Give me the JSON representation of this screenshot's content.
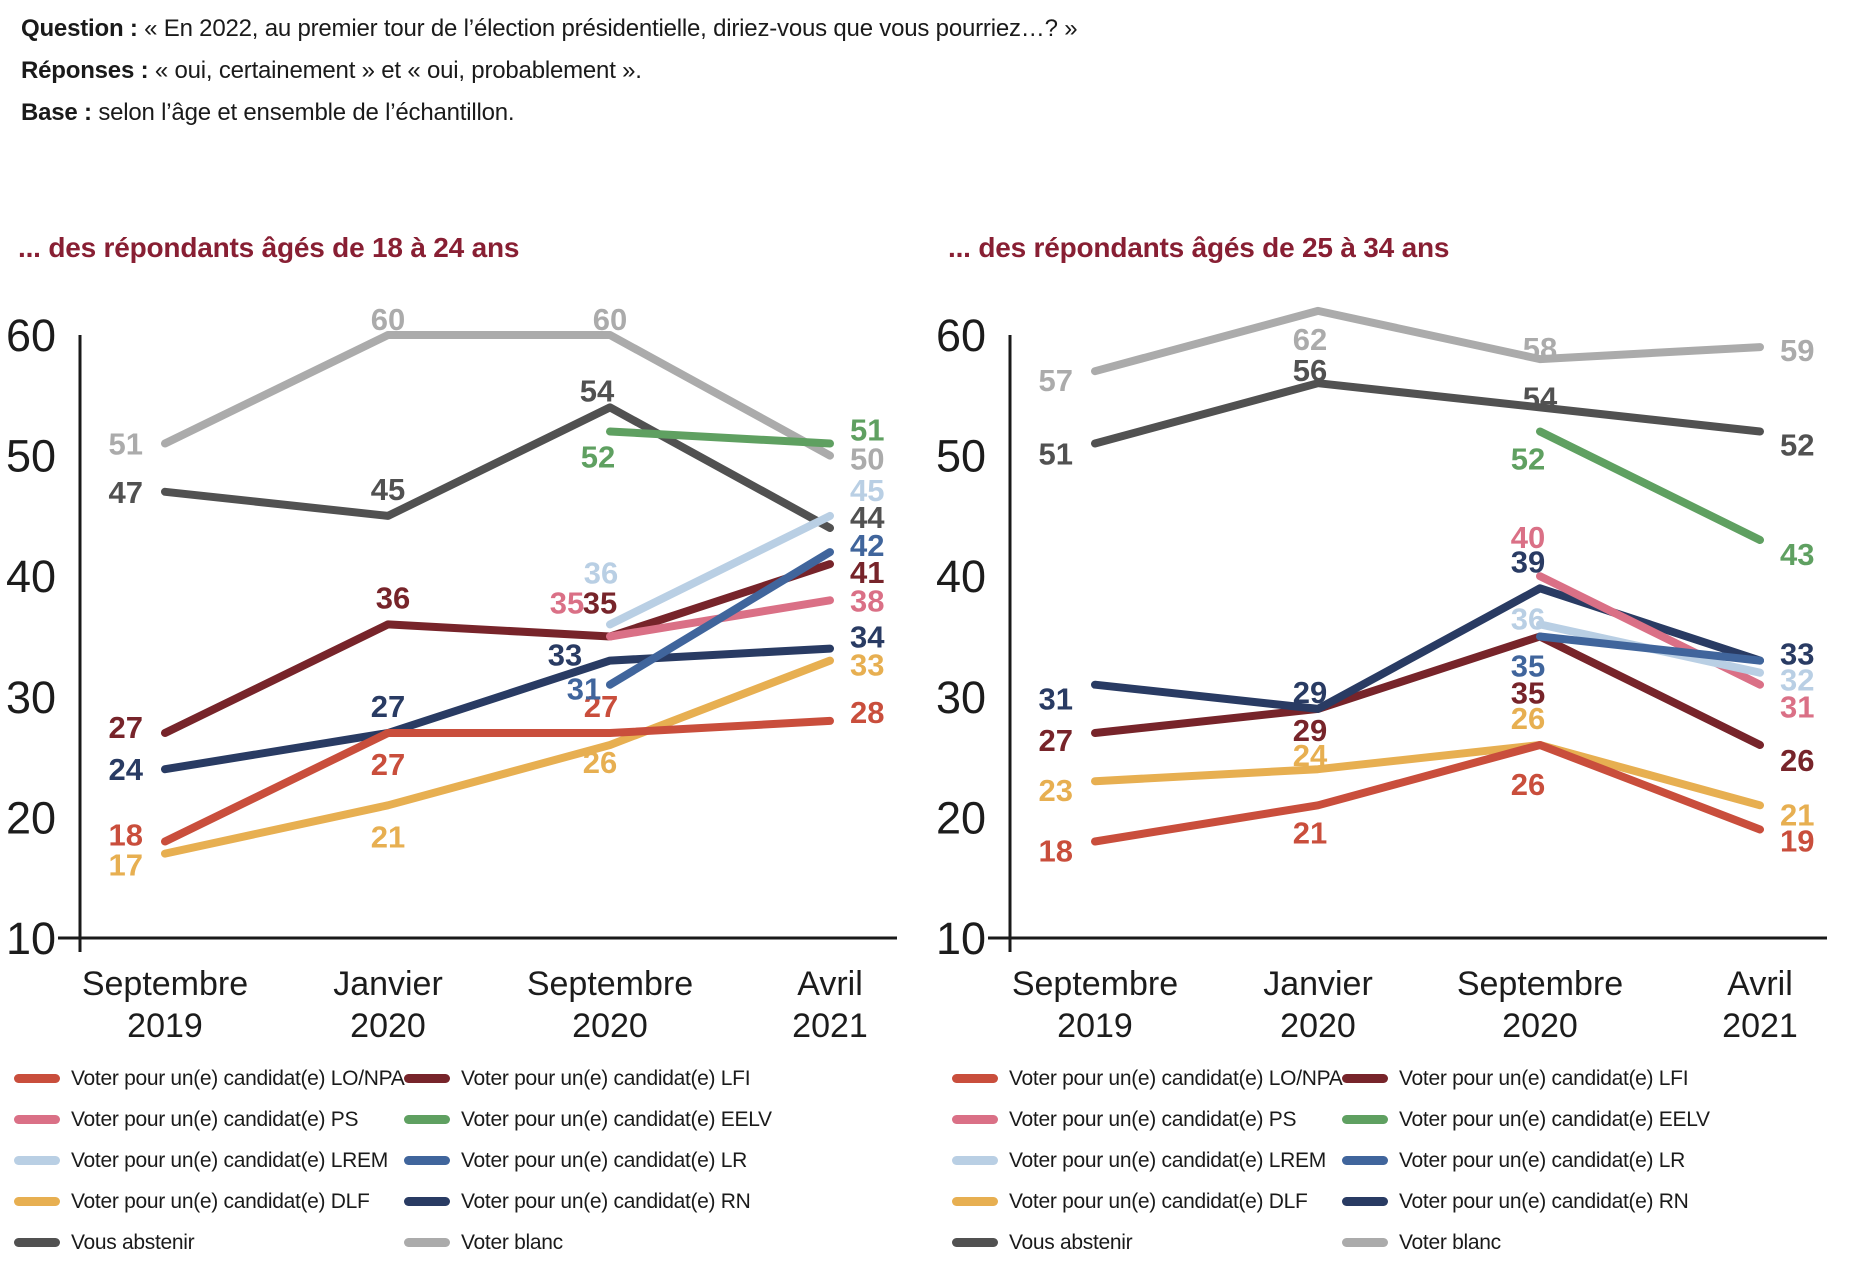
{
  "header": {
    "question_label": "Question :",
    "question_text": "« En 2022, au premier tour de l’élection présidentielle, diriez-vous que vous pourriez…? »",
    "responses_label": "Réponses :",
    "responses_text": "« oui, certainement » et « oui, probablement ».",
    "base_label": "Base :",
    "base_text": "selon l’âge et ensemble de l’échantillon."
  },
  "colors": {
    "lonpa": "#c94e3c",
    "lfi": "#77242a",
    "ps": "#da7086",
    "eelv": "#5fa061",
    "lrem": "#b9cfe4",
    "lr": "#40659c",
    "dlf": "#e7af51",
    "rn": "#293b63",
    "abstenir": "#515151",
    "blanc": "#ababab",
    "title": "#881f33",
    "text": "#1a1a1a"
  },
  "chart_data": [
    {
      "type": "line",
      "title": "... des répondants âgés de 18 à 24 ans",
      "x_labels": [
        [
          "Septembre",
          "2019"
        ],
        [
          "Janvier",
          "2020"
        ],
        [
          "Septembre",
          "2020"
        ],
        [
          "Avril",
          "2021"
        ]
      ],
      "ylim": [
        10,
        60
      ],
      "yticks": [
        60,
        50,
        40,
        30,
        20,
        10
      ],
      "legend_position": "bottom",
      "grid": false,
      "series": [
        {
          "key": "blanc",
          "name": "Voter blanc",
          "values": [
            51,
            60,
            60,
            50
          ],
          "label_pos": [
            "left",
            "above",
            "above",
            "right"
          ],
          "label_dx": [
            0,
            0,
            0,
            0
          ],
          "label_dy": [
            0,
            11,
            11,
            3
          ]
        },
        {
          "key": "abstenir",
          "name": "Vous abstenir",
          "values": [
            47,
            45,
            54,
            44
          ],
          "label_pos": [
            "left",
            "above",
            "above",
            "right"
          ],
          "label_dx": [
            0,
            0,
            -13,
            0
          ],
          "label_dy": [
            0,
            0,
            10,
            -11
          ]
        },
        {
          "key": "eelv",
          "name": "Voter pour un(e) candidat(e) EELV",
          "values": [
            null,
            null,
            52,
            51
          ],
          "label_pos": [
            null,
            null,
            "below",
            "right"
          ],
          "label_dx": [
            0,
            0,
            -12,
            0
          ],
          "label_dy": [
            0,
            0,
            -6,
            -14
          ]
        },
        {
          "key": "lfi",
          "name": "Voter pour un(e) candidat(e) LFI",
          "values": [
            27,
            36,
            35,
            41
          ],
          "label_pos": [
            "left",
            "above",
            "above",
            "right"
          ],
          "label_dx": [
            0,
            5,
            -10,
            0
          ],
          "label_dy": [
            -6,
            0,
            -7,
            8
          ]
        },
        {
          "key": "rn",
          "name": "Voter pour un(e) candidat(e) RN",
          "values": [
            24,
            27,
            33,
            34
          ],
          "label_pos": [
            "left",
            "above",
            "above",
            "right"
          ],
          "label_dx": [
            0,
            0,
            -45,
            0
          ],
          "label_dy": [
            0,
            0,
            21,
            -12
          ]
        },
        {
          "key": "dlf",
          "name": "Voter pour un(e) candidat(e) DLF",
          "values": [
            17,
            21,
            26,
            33
          ],
          "label_pos": [
            "left",
            "below",
            "below",
            "right"
          ],
          "label_dx": [
            0,
            0,
            -10,
            0
          ],
          "label_dy": [
            11,
            0,
            -14,
            4
          ]
        },
        {
          "key": "lonpa",
          "name": "Voter pour un(e) candidat(e) LO/NPA",
          "values": [
            18,
            27,
            27,
            28
          ],
          "label_pos": [
            "left",
            "below",
            "above",
            "right"
          ],
          "label_dx": [
            0,
            0,
            -9,
            0
          ],
          "label_dy": [
            -7,
            0,
            0,
            -9
          ]
        },
        {
          "key": "ps",
          "name": "Voter pour un(e) candidat(e) PS",
          "values": [
            null,
            null,
            35,
            38
          ],
          "label_pos": [
            null,
            null,
            "above",
            "right"
          ],
          "label_dx": [
            0,
            0,
            -43,
            0
          ],
          "label_dy": [
            0,
            0,
            -7,
            0
          ]
        },
        {
          "key": "lrem",
          "name": "Voter pour un(e) candidat(e) LREM",
          "values": [
            null,
            null,
            36,
            45
          ],
          "label_pos": [
            null,
            null,
            "above",
            "right"
          ],
          "label_dx": [
            0,
            0,
            -9,
            0
          ],
          "label_dy": [
            0,
            0,
            -25,
            -26
          ]
        },
        {
          "key": "lr",
          "name": "Voter pour un(e) candidat(e) LR",
          "values": [
            null,
            null,
            31,
            42
          ],
          "label_pos": [
            null,
            null,
            "below",
            "right"
          ],
          "label_dx": [
            0,
            0,
            -26,
            0
          ],
          "label_dy": [
            0,
            0,
            -27,
            -7
          ]
        }
      ]
    },
    {
      "type": "line",
      "title": "... des répondants âgés de 25 à 34 ans",
      "x_labels": [
        [
          "Septembre",
          "2019"
        ],
        [
          "Janvier",
          "2020"
        ],
        [
          "Septembre",
          "2020"
        ],
        [
          "Avril",
          "2021"
        ]
      ],
      "ylim": [
        10,
        60
      ],
      "yticks": [
        60,
        50,
        40,
        30,
        20,
        10
      ],
      "legend_position": "bottom",
      "grid": false,
      "series": [
        {
          "key": "blanc",
          "name": "Voter blanc",
          "values": [
            57,
            62,
            58,
            59
          ],
          "label_pos": [
            "left",
            "below",
            "above",
            "right"
          ],
          "label_dx": [
            0,
            -8,
            0,
            0
          ],
          "label_dy": [
            9,
            -3,
            16,
            3
          ]
        },
        {
          "key": "abstenir",
          "name": "Vous abstenir",
          "values": [
            51,
            56,
            54,
            52
          ],
          "label_pos": [
            "left",
            "above",
            "above",
            "right"
          ],
          "label_dx": [
            0,
            -8,
            0,
            0
          ],
          "label_dy": [
            10,
            14,
            17,
            13
          ]
        },
        {
          "key": "eelv",
          "name": "Voter pour un(e) candidat(e) EELV",
          "values": [
            null,
            null,
            52,
            43
          ],
          "label_pos": [
            null,
            null,
            "below",
            "right"
          ],
          "label_dx": [
            0,
            0,
            -12,
            0
          ],
          "label_dy": [
            0,
            0,
            -4,
            14
          ]
        },
        {
          "key": "lfi",
          "name": "Voter pour un(e) candidat(e) LFI",
          "values": [
            27,
            29,
            35,
            26
          ],
          "label_pos": [
            "left",
            "below",
            "below",
            "right"
          ],
          "label_dx": [
            0,
            -8,
            -12,
            0
          ],
          "label_dy": [
            7,
            -10,
            25,
            15
          ]
        },
        {
          "key": "rn",
          "name": "Voter pour un(e) candidat(e) RN",
          "values": [
            31,
            29,
            39,
            33
          ],
          "label_pos": [
            "left",
            "above",
            "above",
            "right"
          ],
          "label_dx": [
            0,
            -8,
            -12,
            0
          ],
          "label_dy": [
            14,
            10,
            0,
            -7
          ]
        },
        {
          "key": "dlf",
          "name": "Voter pour un(e) candidat(e) DLF",
          "values": [
            23,
            24,
            26,
            21
          ],
          "label_pos": [
            "left",
            "above",
            "above",
            "right"
          ],
          "label_dx": [
            0,
            -8,
            -12,
            0
          ],
          "label_dy": [
            9,
            13,
            0,
            9
          ]
        },
        {
          "key": "lonpa",
          "name": "Voter pour un(e) candidat(e) LO/NPA",
          "values": [
            18,
            21,
            26,
            19
          ],
          "label_pos": [
            "left",
            "below",
            "below",
            "right"
          ],
          "label_dx": [
            0,
            -8,
            -12,
            0
          ],
          "label_dy": [
            9,
            -4,
            8,
            11
          ]
        },
        {
          "key": "ps",
          "name": "Voter pour un(e) candidat(e) PS",
          "values": [
            null,
            null,
            40,
            31
          ],
          "label_pos": [
            null,
            null,
            "above",
            "right"
          ],
          "label_dx": [
            0,
            0,
            -12,
            0
          ],
          "label_dy": [
            0,
            0,
            -12,
            22
          ]
        },
        {
          "key": "lrem",
          "name": "Voter pour un(e) candidat(e) LREM",
          "values": [
            null,
            null,
            36,
            32
          ],
          "label_pos": [
            null,
            null,
            "above",
            "right"
          ],
          "label_dx": [
            0,
            0,
            -12,
            0
          ],
          "label_dy": [
            0,
            0,
            21,
            7
          ]
        },
        {
          "key": "lr",
          "name": "Voter pour un(e) candidat(e) LR",
          "values": [
            null,
            null,
            35,
            33
          ],
          "hide_label_at": [
            3
          ],
          "label_pos": [
            null,
            null,
            "below",
            "right"
          ],
          "label_dx": [
            0,
            0,
            -12,
            0
          ],
          "label_dy": [
            0,
            0,
            -2,
            0
          ]
        }
      ]
    }
  ],
  "legend_rows": [
    [
      {
        "key": "lonpa",
        "label": "Voter pour un(e) candidat(e) LO/NPA"
      },
      {
        "key": "lfi",
        "label": "Voter pour un(e) candidat(e) LFI"
      }
    ],
    [
      {
        "key": "ps",
        "label": "Voter pour un(e) candidat(e) PS"
      },
      {
        "key": "eelv",
        "label": "Voter pour un(e) candidat(e) EELV"
      }
    ],
    [
      {
        "key": "lrem",
        "label": "Voter pour un(e) candidat(e) LREM"
      },
      {
        "key": "lr",
        "label": "Voter pour un(e) candidat(e) LR"
      }
    ],
    [
      {
        "key": "dlf",
        "label": "Voter pour un(e) candidat(e) DLF"
      },
      {
        "key": "rn",
        "label": "Voter pour un(e) candidat(e) RN"
      }
    ],
    [
      {
        "key": "abstenir",
        "label": "Vous abstenir"
      },
      {
        "key": "blanc",
        "label": "Voter blanc"
      }
    ]
  ]
}
